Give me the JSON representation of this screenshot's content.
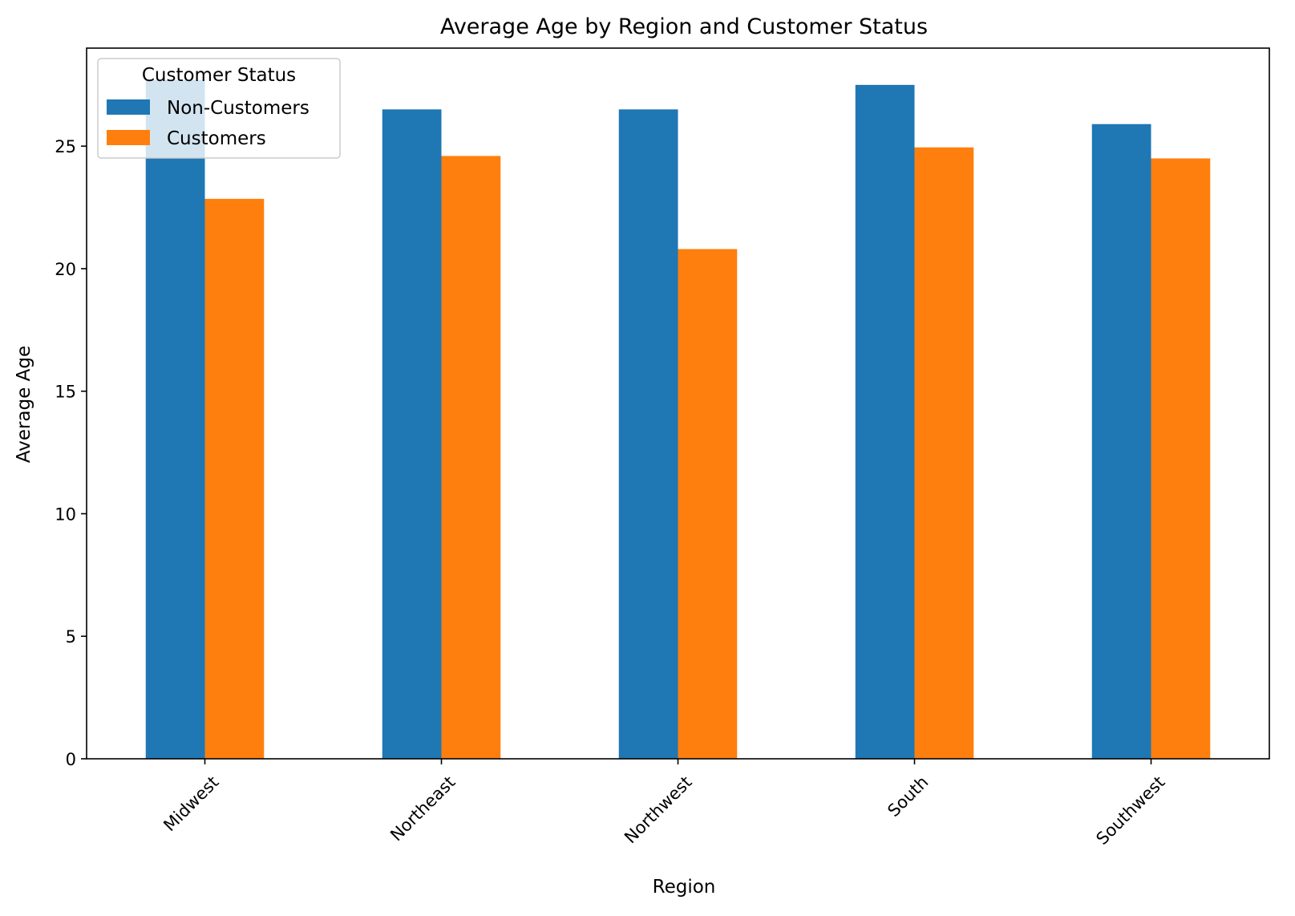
{
  "chart_data": {
    "type": "bar",
    "title": "Average Age by Region and Customer Status",
    "xlabel": "Region",
    "ylabel": "Average Age",
    "categories": [
      "Midwest",
      "Northeast",
      "Northwest",
      "South",
      "Southwest"
    ],
    "series": [
      {
        "name": "Non-Customers",
        "color": "#1f77b4",
        "values": [
          27.7,
          26.5,
          26.5,
          27.5,
          25.9
        ]
      },
      {
        "name": "Customers",
        "color": "#ff7f0e",
        "values": [
          22.85,
          24.6,
          20.8,
          24.95,
          24.5
        ]
      }
    ],
    "ylim": [
      0,
      29.0
    ],
    "yticks": [
      0,
      5,
      10,
      15,
      20,
      25
    ],
    "grid": false,
    "legend": {
      "title": "Customer Status",
      "placement": "top-left"
    }
  }
}
